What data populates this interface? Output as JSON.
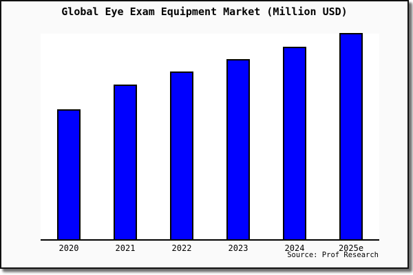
{
  "figure": {
    "title": "Global Eye Exam Equipment Market (Million USD)",
    "source_note": "Source: Prof Research"
  },
  "chart_data": {
    "type": "bar",
    "title": "Global Eye Exam Equipment Market (Million USD)",
    "categories": [
      "2020",
      "2021",
      "2022",
      "2023",
      "2024",
      "2025e"
    ],
    "values_relative_index_2025e_100": [
      63,
      75,
      81.5,
      87.5,
      93.5,
      100
    ],
    "xlabel": "",
    "ylabel": "",
    "y_axis": "unlabeled - no tick values or gridlines shown",
    "ylim_note": "top of plot approximately equals 2025e bar height",
    "grid": false,
    "legend": "none",
    "bar_color": "#0000ff",
    "bar_border_color": "#000000",
    "plot_background": "#ffffff",
    "canvas_background": "#fafafa",
    "frame_color": "#101010",
    "source": "Source: Prof Research"
  }
}
